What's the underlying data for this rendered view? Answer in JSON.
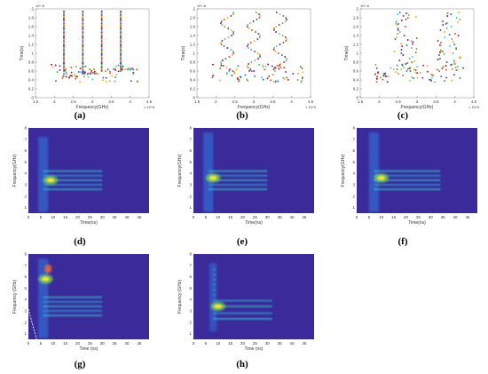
{
  "figure": {
    "captions": [
      "(a)",
      "(b)",
      "(c)",
      "(d)",
      "(e)",
      "(f)",
      "(g)",
      "(h)"
    ],
    "colors": {
      "heatmap_background": "#3a2a9a",
      "heatmap_mid": "#2c9fd0",
      "heatmap_high": "#f5e33a",
      "scatter_palette": [
        "#1f77b4",
        "#d95319",
        "#edb120",
        "#7e2f8e",
        "#77ac30",
        "#4dbeee",
        "#a2142f"
      ]
    }
  },
  "chart_data": [
    {
      "id": "a",
      "type": "scatter",
      "xlabel": "Frequency(GHz)",
      "ylabel": "Time(s)",
      "x_exponent": "× 10^9",
      "y_exponent": "10^-8",
      "xlim": [
        1.5,
        4.5
      ],
      "ylim": [
        0,
        2
      ],
      "xticks": [
        "1.5",
        "2",
        "2.5",
        "3",
        "3.5",
        "4",
        "4.5"
      ],
      "yticks": [
        "0",
        "0.2",
        "0.4",
        "0.6",
        "0.8",
        "1",
        "1.2",
        "1.4",
        "1.6",
        "1.8",
        "2"
      ],
      "pattern": "vertical-lines",
      "line_x": [
        2.25,
        2.75,
        3.25,
        3.75
      ],
      "line_y_start": 0.6,
      "line_y_end": 1.95
    },
    {
      "id": "b",
      "type": "scatter",
      "xlabel": "Frequency(GHz)",
      "ylabel": "Time(s)",
      "x_exponent": "× 10^9",
      "y_exponent": "10^-8",
      "xlim": [
        1.5,
        4.5
      ],
      "ylim": [
        0,
        2
      ],
      "xticks": [
        "1.5",
        "2",
        "2.5",
        "3",
        "3.5",
        "4",
        "4.5"
      ],
      "yticks": [
        "0",
        "0.2",
        "0.4",
        "0.6",
        "0.8",
        "1",
        "1.2",
        "1.4",
        "1.6",
        "1.8",
        "2"
      ],
      "pattern": "sine-lines",
      "line_x": [
        2.3,
        3.0,
        3.7
      ],
      "line_y_start": 0.6,
      "line_y_end": 1.95
    },
    {
      "id": "c",
      "type": "scatter",
      "xlabel": "Frequency(GHz)",
      "ylabel": "Time(s)",
      "x_exponent": "× 10^9",
      "y_exponent": "10^-8",
      "xlim": [
        1.5,
        4.5
      ],
      "ylim": [
        0,
        2
      ],
      "xticks": [
        "1.5",
        "2",
        "2.5",
        "3",
        "3.5",
        "4",
        "4.5"
      ],
      "yticks": [
        "0",
        "0.2",
        "0.4",
        "0.6",
        "0.8",
        "1",
        "1.2",
        "1.4",
        "1.6",
        "1.8",
        "2"
      ],
      "pattern": "scattered-bands",
      "line_x": [
        2.7,
        3.85
      ],
      "line_y_start": 0.6,
      "line_y_end": 1.95
    },
    {
      "id": "d",
      "type": "heatmap",
      "xlabel": "Time(ns)",
      "ylabel": "Frequency(GHz)",
      "xlim": [
        0,
        49
      ],
      "ylim": [
        0.5,
        8
      ],
      "xticks": [
        "0",
        "5",
        "10",
        "15",
        "20",
        "25",
        "30",
        "35",
        "40",
        "45"
      ],
      "yticks": [
        "1",
        "2",
        "3",
        "4",
        "5",
        "6",
        "7",
        "8"
      ],
      "variant": "d"
    },
    {
      "id": "e",
      "type": "heatmap",
      "xlabel": "Time(ns)",
      "ylabel": "Frequency(GHz)",
      "xlim": [
        0,
        49
      ],
      "ylim": [
        0.5,
        8
      ],
      "xticks": [
        "0",
        "5",
        "10",
        "15",
        "20",
        "25",
        "30",
        "35",
        "40",
        "45"
      ],
      "yticks": [
        "1",
        "2",
        "3",
        "4",
        "5",
        "6",
        "7",
        "8"
      ],
      "variant": "e"
    },
    {
      "id": "f",
      "type": "heatmap",
      "xlabel": "Time(ns)",
      "ylabel": "Frequency(GHz)",
      "xlim": [
        0,
        49
      ],
      "ylim": [
        0.5,
        8
      ],
      "xticks": [
        "0",
        "5",
        "10",
        "15",
        "20",
        "25",
        "30",
        "35",
        "40",
        "45"
      ],
      "yticks": [
        "1",
        "2",
        "3",
        "4",
        "5",
        "6",
        "7",
        "8"
      ],
      "variant": "f"
    },
    {
      "id": "g",
      "type": "heatmap",
      "xlabel": "Time (ns)",
      "ylabel": "Frequency (GHz)",
      "xlim": [
        0,
        49
      ],
      "ylim": [
        0.5,
        8
      ],
      "xticks": [
        "0",
        "5",
        "10",
        "15",
        "20",
        "25",
        "30",
        "35",
        "40",
        "45"
      ],
      "yticks": [
        "1",
        "2",
        "3",
        "4",
        "5",
        "6",
        "7",
        "8"
      ],
      "variant": "g"
    },
    {
      "id": "h",
      "type": "heatmap",
      "xlabel": "Time (ns)",
      "ylabel": "Frequency (GHz)",
      "xlim": [
        0,
        49
      ],
      "ylim": [
        0.5,
        8
      ],
      "xticks": [
        "0",
        "5",
        "10",
        "15",
        "20",
        "25",
        "30",
        "35",
        "40",
        "45"
      ],
      "yticks": [
        "1",
        "2",
        "3",
        "4",
        "5",
        "6",
        "7",
        "8"
      ],
      "variant": "h"
    }
  ]
}
